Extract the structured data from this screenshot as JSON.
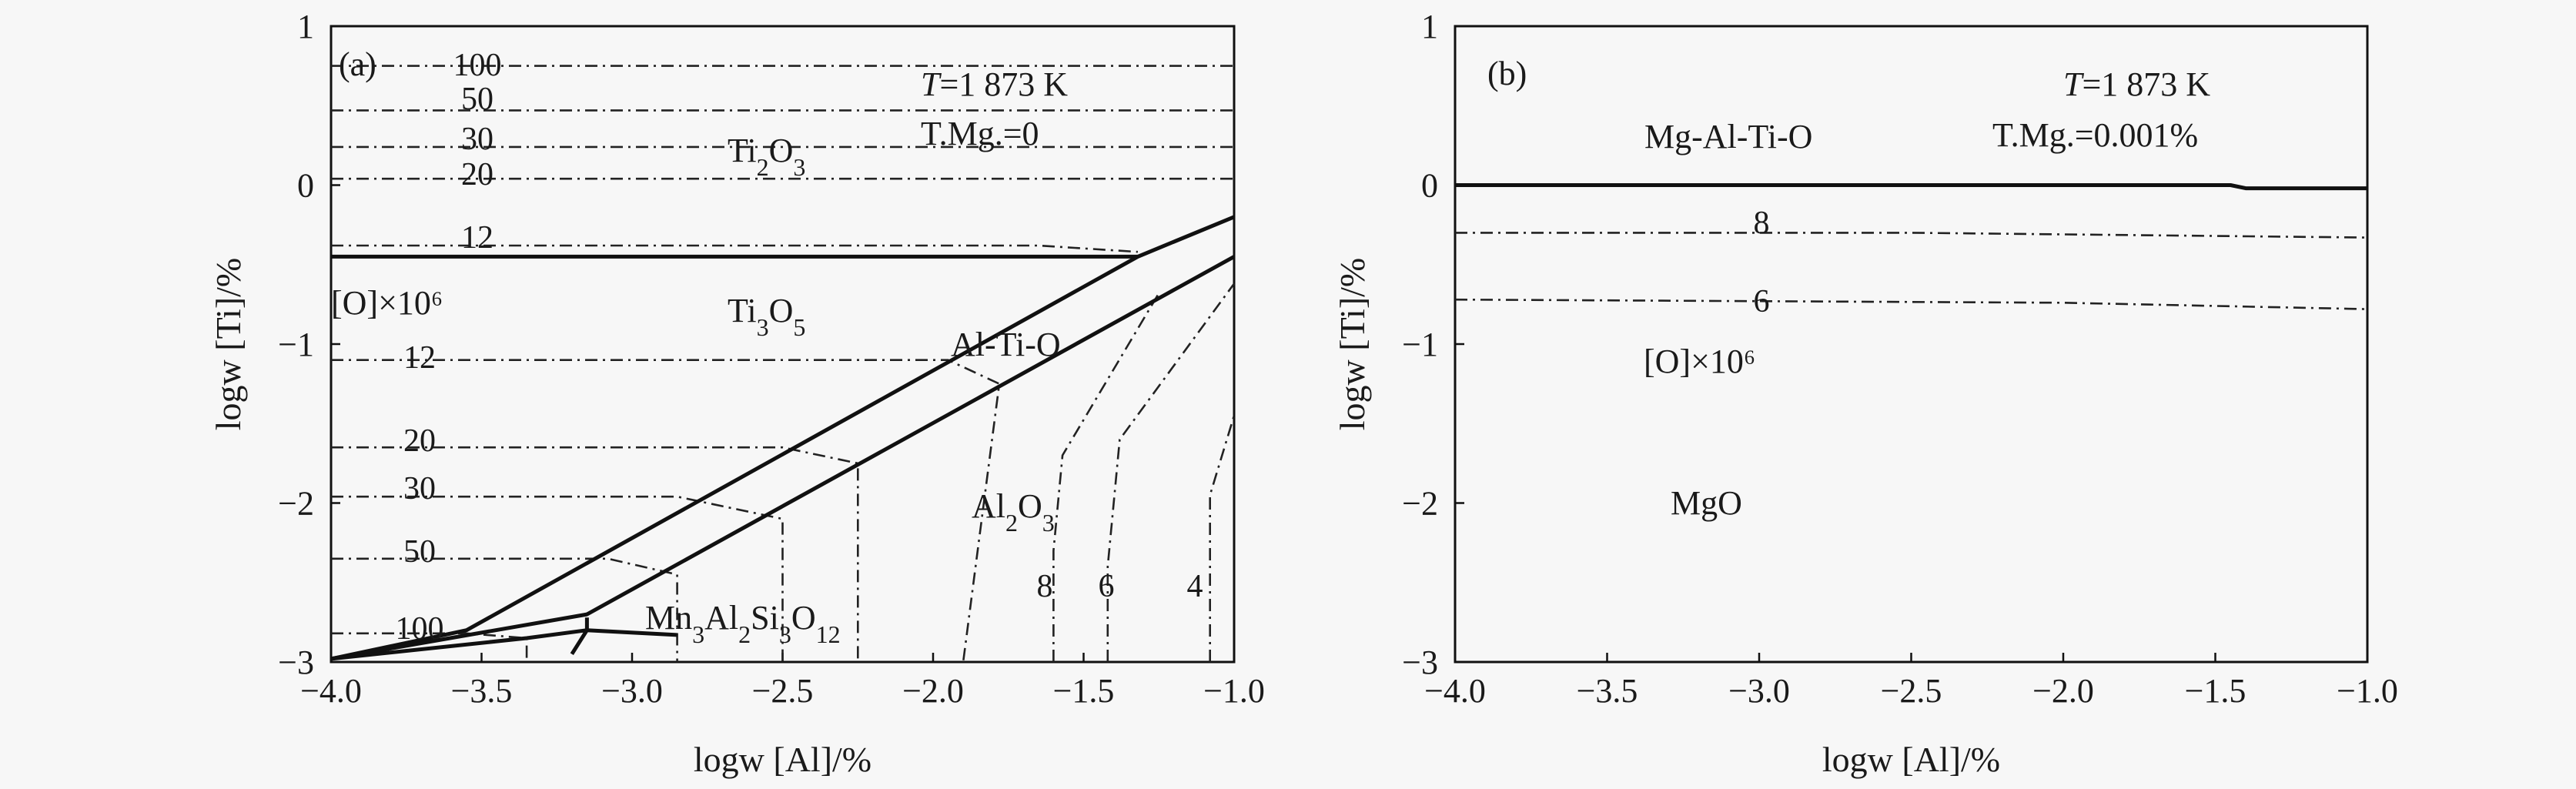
{
  "chart_data": [
    {
      "panel": "(a)",
      "type": "line",
      "xlabel": "logw [Al]/%",
      "ylabel": "logw [Ti]/%",
      "xlim": [
        -4.0,
        -1.0
      ],
      "ylim": [
        -3,
        1
      ],
      "xticks": [
        "−4.0",
        "−3.5",
        "−3.0",
        "−2.5",
        "−2.0",
        "−1.5",
        "−1.0"
      ],
      "yticks": [
        "1",
        "0",
        "−1",
        "−2",
        "−3"
      ],
      "annotations": {
        "temperature": "T=1 873 K",
        "tmg": "T.Mg.=0",
        "oxygen_label": "[O]×10⁶"
      },
      "phases": [
        "Ti₂O₃",
        "Ti₃O₅",
        "Al-Ti-O",
        "Al₂O₃",
        "Mn₃Al₂Si₃O₁₂"
      ],
      "boundaries": [
        {
          "name": "Ti2O3/Ti3O5",
          "x": [
            -4.0,
            -1.32
          ],
          "y": [
            -0.45,
            -0.45
          ]
        },
        {
          "name": "upper Al-Ti-O",
          "x": [
            -4.0,
            -3.55,
            -1.32,
            -1.0
          ],
          "y": [
            -2.98,
            -2.8,
            -0.45,
            -0.2
          ]
        },
        {
          "name": "lower Al-Ti-O",
          "x": [
            -4.0,
            -3.15,
            -1.0
          ],
          "y": [
            -2.98,
            -2.7,
            -0.45
          ]
        },
        {
          "name": "Mn-silicate",
          "x": [
            -4.0,
            -3.35,
            -3.15,
            -2.85
          ],
          "y": [
            -2.98,
            -2.85,
            -2.8,
            -2.83
          ]
        },
        {
          "name": "small branch",
          "x": [
            -3.2,
            -3.15,
            -3.15
          ],
          "y": [
            -2.95,
            -2.8,
            -2.72
          ]
        }
      ],
      "isolines": [
        {
          "label": "100",
          "x": [
            -4.0,
            -1.0
          ],
          "y": [
            0.75,
            0.75
          ]
        },
        {
          "label": "50",
          "x": [
            -4.0,
            -1.0
          ],
          "y": [
            0.47,
            0.47
          ]
        },
        {
          "label": "30",
          "x": [
            -4.0,
            -1.0
          ],
          "y": [
            0.24,
            0.24
          ]
        },
        {
          "label": "20",
          "x": [
            -4.0,
            -1.0
          ],
          "y": [
            0.04,
            0.04
          ]
        },
        {
          "label": "12",
          "x": [
            -4.0,
            -1.65,
            -1.32
          ],
          "y": [
            -0.38,
            -0.38,
            -0.42
          ]
        },
        {
          "label": "12",
          "x": [
            -4.0,
            -1.95,
            -1.78,
            -1.9
          ],
          "y": [
            -1.1,
            -1.1,
            -1.25,
            -3.0
          ]
        },
        {
          "label": "20",
          "x": [
            -4.0,
            -2.5,
            -2.25,
            -2.25
          ],
          "y": [
            -1.65,
            -1.65,
            -1.75,
            -3.0
          ]
        },
        {
          "label": "30",
          "x": [
            -4.0,
            -2.85,
            -2.5,
            -2.5
          ],
          "y": [
            -1.96,
            -1.96,
            -2.1,
            -3.0
          ]
        },
        {
          "label": "50",
          "x": [
            -4.0,
            -3.08,
            -2.85,
            -2.85
          ],
          "y": [
            -2.35,
            -2.35,
            -2.45,
            -3.0
          ]
        },
        {
          "label": "100",
          "x": [
            -4.0,
            -3.55,
            -3.35,
            -3.35
          ],
          "y": [
            -2.82,
            -2.82,
            -2.85,
            -3.0
          ]
        },
        {
          "label": "8",
          "x": [
            -1.6,
            -1.6,
            -1.57,
            -1.25
          ],
          "y": [
            -3.0,
            -2.3,
            -1.7,
            -0.68
          ]
        },
        {
          "label": "6",
          "x": [
            -1.42,
            -1.42,
            -1.38,
            -1.0
          ],
          "y": [
            -3.0,
            -2.4,
            -1.6,
            -0.62
          ]
        },
        {
          "label": "4",
          "x": [
            -1.08,
            -1.08,
            -1.0
          ],
          "y": [
            -3.0,
            -1.95,
            -1.45
          ]
        }
      ]
    },
    {
      "panel": "(b)",
      "type": "line",
      "xlabel": "logw [Al]/%",
      "ylabel": "logw [Ti]/%",
      "xlim": [
        -4.0,
        -1.0
      ],
      "ylim": [
        -3,
        1
      ],
      "xticks": [
        "−4.0",
        "−3.5",
        "−3.0",
        "−2.5",
        "−2.0",
        "−1.5",
        "−1.0"
      ],
      "yticks": [
        "1",
        "0",
        "−1",
        "−2",
        "−3"
      ],
      "annotations": {
        "temperature": "T=1 873 K",
        "tmg": "T.Mg.=0.001%",
        "oxygen_label": "[O]×10⁶"
      },
      "phases": [
        "Mg-Al-Ti-O",
        "MgO"
      ],
      "boundaries": [
        {
          "name": "MgAlTiO/MgO",
          "x": [
            -4.0,
            -1.45,
            -1.4,
            -1.0
          ],
          "y": [
            0.0,
            0.0,
            -0.02,
            -0.02
          ]
        }
      ],
      "isolines": [
        {
          "label": "8",
          "x": [
            -4.0,
            -2.5,
            -1.0
          ],
          "y": [
            -0.3,
            -0.3,
            -0.33
          ]
        },
        {
          "label": "6",
          "x": [
            -4.0,
            -2.0,
            -1.0
          ],
          "y": [
            -0.72,
            -0.74,
            -0.78
          ]
        }
      ]
    }
  ]
}
